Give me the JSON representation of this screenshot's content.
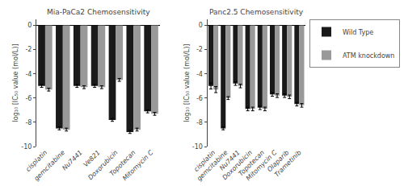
{
  "chart_data": [
    {
      "type": "bar",
      "title": "Mia-PaCa2 Chemosensitivity",
      "y_label": "log₁₀ [IC₅₀ value (mol/L)]",
      "categories": [
        "cisplatin",
        "gemcitabine",
        "Nu7441",
        "Ve821",
        "Doxorubicin",
        "Topotecan",
        "Mitomycin C"
      ],
      "series": [
        {
          "name": "Wild Type",
          "color": "#1a1a1a",
          "values": [
            -5.0,
            -8.5,
            -5.0,
            -5.0,
            -7.8,
            -8.8,
            -7.1
          ],
          "errors": [
            0.12,
            0.12,
            0.12,
            0.12,
            0.12,
            0.12,
            0.12
          ]
        },
        {
          "name": "ATM knockdown",
          "color": "#999999",
          "values": [
            -5.3,
            -8.6,
            -5.1,
            -5.1,
            -4.5,
            -8.6,
            -7.3
          ],
          "errors": [
            0.12,
            0.12,
            0.12,
            0.12,
            0.12,
            0.12,
            0.12
          ]
        }
      ],
      "ylim": [
        -10,
        0.5
      ],
      "yticks": [
        0,
        -2,
        -4,
        -6,
        -8,
        -10
      ],
      "grid": false,
      "legend": "upper right"
    },
    {
      "type": "bar",
      "title": "Panc2.5 Chemosensitivity",
      "y_label": "log₁₀ [IC₅₀ value (mol/L)]",
      "categories": [
        "cisplatin",
        "gemcitabine",
        "Nu7441",
        "Doxorubicin",
        "Topotecan",
        "Mitomycin C",
        "Olaparib",
        "Trametinib"
      ],
      "series": [
        {
          "name": "Wild Type",
          "color": "#1a1a1a",
          "values": [
            -5.0,
            -8.5,
            -4.8,
            -6.9,
            -6.8,
            -5.7,
            -5.8,
            -6.5
          ],
          "errors": [
            0.25,
            0.12,
            0.15,
            0.15,
            0.15,
            0.15,
            0.15,
            0.15
          ]
        },
        {
          "name": "ATM knockdown",
          "color": "#999999",
          "values": [
            -5.3,
            -6.0,
            -5.0,
            -6.9,
            -6.9,
            -5.8,
            -5.9,
            -6.6
          ],
          "errors": [
            0.25,
            0.12,
            0.15,
            0.15,
            0.15,
            0.15,
            0.15,
            0.15
          ]
        }
      ],
      "ylim": [
        -10,
        0.5
      ],
      "yticks": [
        0,
        -2,
        -4,
        -6,
        -8,
        -10
      ],
      "grid": false
    }
  ]
}
